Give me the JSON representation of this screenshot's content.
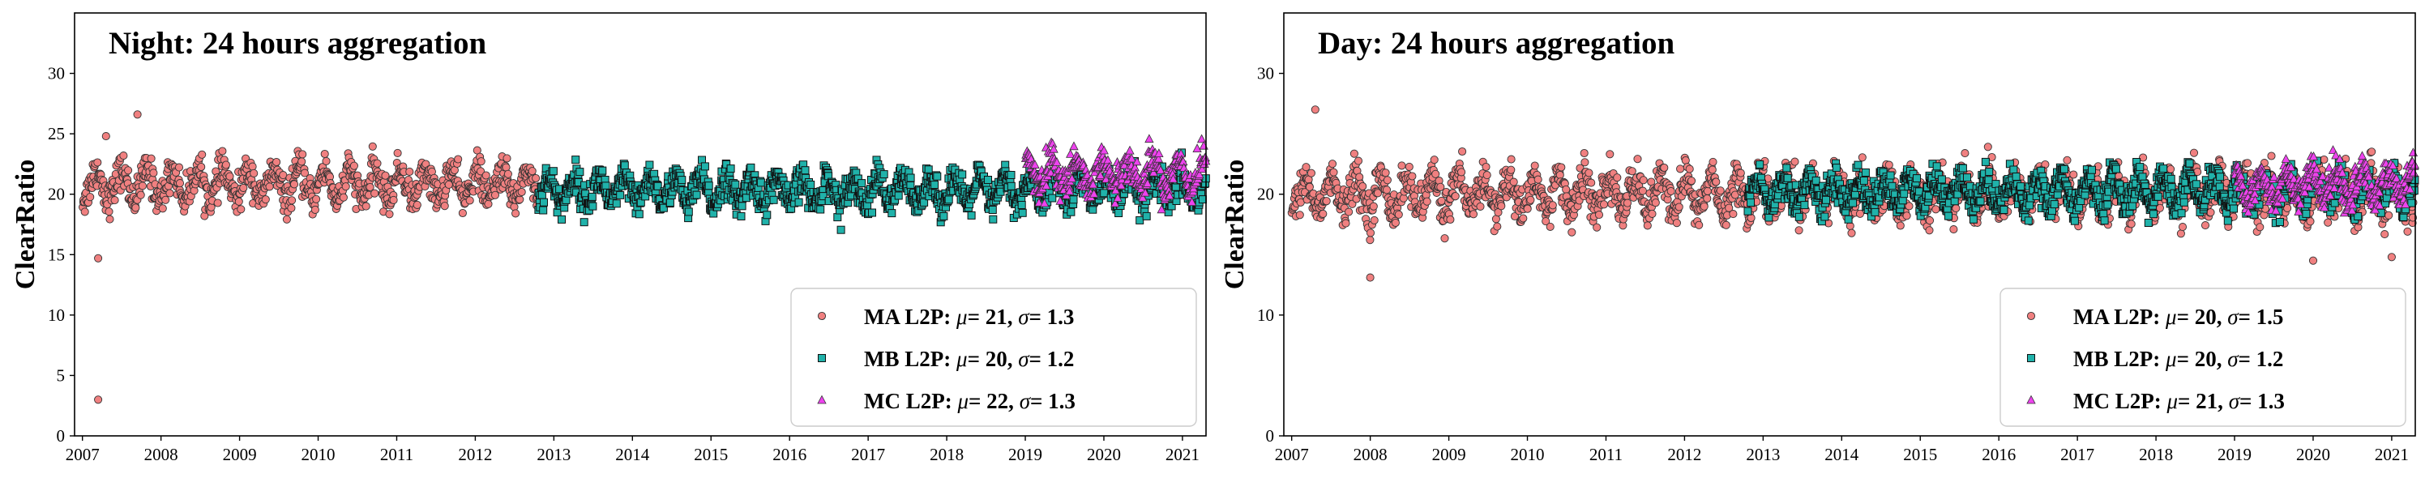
{
  "chart_data": [
    {
      "type": "scatter",
      "title": "Night: 24 hours aggregation",
      "xlabel": "",
      "ylabel": "ClearRatio",
      "ylim": [
        0,
        35
      ],
      "xlim": [
        2006.9,
        2021.3
      ],
      "x_ticks": [
        "2007",
        "2008",
        "2009",
        "2010",
        "2011",
        "2012",
        "2013",
        "2014",
        "2015",
        "2016",
        "2017",
        "2018",
        "2019",
        "2020",
        "2021"
      ],
      "y_ticks": [
        "0",
        "5",
        "10",
        "15",
        "20",
        "25",
        "30"
      ],
      "legend_position": "lower-right",
      "series": [
        {
          "name": "MA L2P",
          "mu": "21",
          "sigma": "1.3",
          "color": "#f08080",
          "marker": "circle",
          "x_range": [
            2007.0,
            2012.8
          ],
          "mean": 20.8,
          "spread": 1.3,
          "outliers": [
            {
              "x": 2007.2,
              "y": 3.0
            },
            {
              "x": 2007.2,
              "y": 14.7
            },
            {
              "x": 2007.7,
              "y": 26.6
            },
            {
              "x": 2007.3,
              "y": 24.8
            }
          ]
        },
        {
          "name": "MB L2P",
          "mu": "20",
          "sigma": "1.2",
          "color": "#20b2aa",
          "marker": "square",
          "x_range": [
            2012.8,
            2021.3
          ],
          "mean": 20.3,
          "spread": 1.2,
          "outliers": []
        },
        {
          "name": "MC L2P",
          "mu": "22",
          "sigma": "1.3",
          "color": "#ee42ee",
          "marker": "triangle",
          "x_range": [
            2019.0,
            2021.3
          ],
          "mean": 21.8,
          "spread": 1.3,
          "outliers": []
        }
      ]
    },
    {
      "type": "scatter",
      "title": "Day: 24 hours aggregation",
      "xlabel": "",
      "ylabel": "ClearRatio",
      "ylim": [
        0,
        35
      ],
      "xlim": [
        2006.9,
        2021.3
      ],
      "x_ticks": [
        "2007",
        "2008",
        "2009",
        "2010",
        "2011",
        "2012",
        "2013",
        "2014",
        "2015",
        "2016",
        "2017",
        "2018",
        "2019",
        "2020",
        "2021"
      ],
      "y_ticks": [
        "0",
        "10",
        "20",
        "30"
      ],
      "legend_position": "lower-right",
      "series": [
        {
          "name": "MA L2P",
          "mu": "20",
          "sigma": "1.5",
          "color": "#f08080",
          "marker": "circle",
          "x_range": [
            2007.0,
            2021.3
          ],
          "mean": 20.0,
          "spread": 1.5,
          "outliers": [
            {
              "x": 2007.3,
              "y": 27.0
            },
            {
              "x": 2008.0,
              "y": 13.1
            },
            {
              "x": 2020.0,
              "y": 14.5
            },
            {
              "x": 2021.0,
              "y": 14.8
            }
          ]
        },
        {
          "name": "MB L2P",
          "mu": "20",
          "sigma": "1.2",
          "color": "#20b2aa",
          "marker": "square",
          "x_range": [
            2012.8,
            2021.3
          ],
          "mean": 20.2,
          "spread": 1.2,
          "outliers": []
        },
        {
          "name": "MC L2P",
          "mu": "21",
          "sigma": "1.3",
          "color": "#ee42ee",
          "marker": "triangle",
          "x_range": [
            2019.0,
            2021.3
          ],
          "mean": 20.8,
          "spread": 1.3,
          "outliers": []
        }
      ]
    }
  ]
}
